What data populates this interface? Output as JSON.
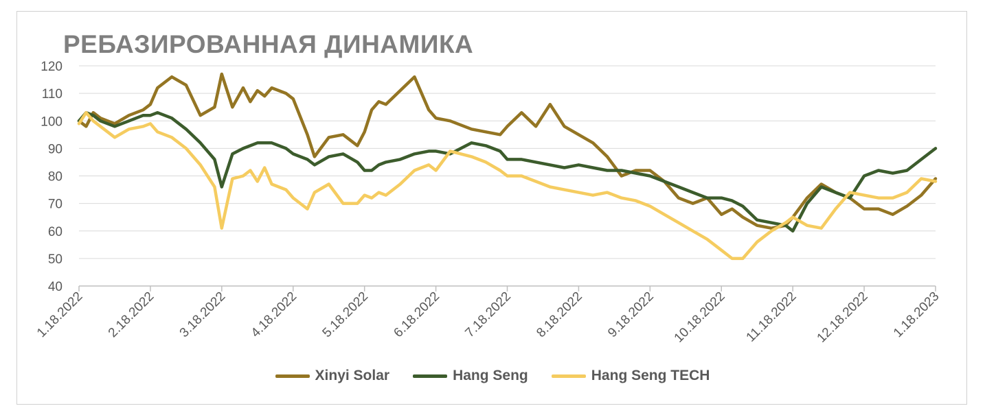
{
  "chart_data": {
    "type": "line",
    "title": "РЕБАЗИРОВАННАЯ ДИНАМИКА",
    "ylim": [
      40,
      120
    ],
    "y_ticks": [
      40,
      50,
      60,
      70,
      80,
      90,
      100,
      110,
      120
    ],
    "x_tick_labels": [
      "1.18.2022",
      "2.18.2022",
      "3.18.2022",
      "4.18.2022",
      "5.18.2022",
      "6.18.2022",
      "7.18.2022",
      "8.18.2022",
      "9.18.2022",
      "10.18.2022",
      "11.18.2022",
      "12.18.2022",
      "1.18.2023"
    ],
    "x_unit": "month",
    "grid": true,
    "legend_position": "bottom",
    "series": [
      {
        "name": "Xinyi Solar",
        "color": "#947523",
        "x": [
          0,
          0.1,
          0.2,
          0.3,
          0.5,
          0.7,
          0.9,
          1.0,
          1.1,
          1.3,
          1.5,
          1.7,
          1.9,
          2.0,
          2.15,
          2.3,
          2.4,
          2.5,
          2.6,
          2.7,
          2.9,
          3.0,
          3.2,
          3.3,
          3.5,
          3.7,
          3.9,
          4.0,
          4.1,
          4.2,
          4.3,
          4.5,
          4.7,
          4.9,
          5.0,
          5.2,
          5.5,
          5.7,
          5.9,
          6.0,
          6.2,
          6.4,
          6.6,
          6.8,
          7.0,
          7.2,
          7.4,
          7.6,
          7.8,
          8.0,
          8.2,
          8.4,
          8.6,
          8.8,
          9.0,
          9.15,
          9.3,
          9.5,
          9.7,
          9.9,
          10.0,
          10.2,
          10.4,
          10.6,
          10.8,
          11.0,
          11.2,
          11.4,
          11.6,
          11.8,
          12.0
        ],
        "values": [
          100,
          98,
          103,
          101,
          99,
          102,
          104,
          106,
          112,
          116,
          113,
          102,
          105,
          117,
          105,
          112,
          107,
          111,
          109,
          112,
          110,
          108,
          95,
          87,
          94,
          95,
          91,
          96,
          104,
          107,
          106,
          111,
          116,
          104,
          101,
          100,
          97,
          96,
          95,
          98,
          103,
          98,
          106,
          98,
          95,
          92,
          87,
          80,
          82,
          82,
          78,
          72,
          70,
          72,
          66,
          68,
          65,
          62,
          61,
          62,
          65,
          72,
          77,
          74,
          72,
          68,
          68,
          66,
          69,
          73,
          79
        ]
      },
      {
        "name": "Hang Seng",
        "color": "#3c5c2c",
        "x": [
          0,
          0.1,
          0.2,
          0.3,
          0.5,
          0.7,
          0.9,
          1.0,
          1.1,
          1.3,
          1.5,
          1.7,
          1.9,
          2.0,
          2.15,
          2.3,
          2.4,
          2.5,
          2.6,
          2.7,
          2.9,
          3.0,
          3.2,
          3.3,
          3.5,
          3.7,
          3.9,
          4.0,
          4.1,
          4.2,
          4.3,
          4.5,
          4.7,
          4.9,
          5.0,
          5.2,
          5.5,
          5.7,
          5.9,
          6.0,
          6.2,
          6.4,
          6.6,
          6.8,
          7.0,
          7.2,
          7.4,
          7.6,
          7.8,
          8.0,
          8.2,
          8.4,
          8.6,
          8.8,
          9.0,
          9.15,
          9.3,
          9.5,
          9.7,
          9.9,
          10.0,
          10.2,
          10.4,
          10.6,
          10.8,
          11.0,
          11.2,
          11.4,
          11.6,
          11.8,
          12.0
        ],
        "values": [
          100,
          103,
          102,
          100,
          98,
          100,
          102,
          102,
          103,
          101,
          97,
          92,
          86,
          76,
          88,
          90,
          91,
          92,
          92,
          92,
          90,
          88,
          86,
          84,
          87,
          88,
          85,
          82,
          82,
          84,
          85,
          86,
          88,
          89,
          89,
          88,
          92,
          91,
          89,
          86,
          86,
          85,
          84,
          83,
          84,
          83,
          82,
          82,
          81,
          80,
          78,
          76,
          74,
          72,
          72,
          71,
          69,
          64,
          63,
          62,
          60,
          70,
          76,
          74,
          72,
          80,
          82,
          81,
          82,
          86,
          90
        ]
      },
      {
        "name": "Hang Seng TECH",
        "color": "#f5cc60",
        "x": [
          0,
          0.1,
          0.2,
          0.3,
          0.5,
          0.7,
          0.9,
          1.0,
          1.1,
          1.3,
          1.5,
          1.7,
          1.9,
          2.0,
          2.15,
          2.3,
          2.4,
          2.5,
          2.6,
          2.7,
          2.9,
          3.0,
          3.2,
          3.3,
          3.5,
          3.7,
          3.9,
          4.0,
          4.1,
          4.2,
          4.3,
          4.5,
          4.7,
          4.9,
          5.0,
          5.2,
          5.5,
          5.7,
          5.9,
          6.0,
          6.2,
          6.4,
          6.6,
          6.8,
          7.0,
          7.2,
          7.4,
          7.6,
          7.8,
          8.0,
          8.2,
          8.4,
          8.6,
          8.8,
          9.0,
          9.15,
          9.3,
          9.5,
          9.7,
          9.9,
          10.0,
          10.2,
          10.4,
          10.6,
          10.8,
          11.0,
          11.2,
          11.4,
          11.6,
          11.8,
          12.0
        ],
        "values": [
          99,
          103,
          100,
          98,
          94,
          97,
          98,
          99,
          96,
          94,
          90,
          84,
          76,
          61,
          79,
          80,
          82,
          78,
          83,
          77,
          75,
          72,
          68,
          74,
          77,
          70,
          70,
          73,
          72,
          74,
          73,
          77,
          82,
          84,
          82,
          89,
          87,
          85,
          82,
          80,
          80,
          78,
          76,
          75,
          74,
          73,
          74,
          72,
          71,
          69,
          66,
          63,
          60,
          57,
          53,
          50,
          50,
          56,
          60,
          63,
          65,
          62,
          61,
          68,
          74,
          73,
          72,
          72,
          74,
          79,
          78
        ]
      }
    ]
  }
}
